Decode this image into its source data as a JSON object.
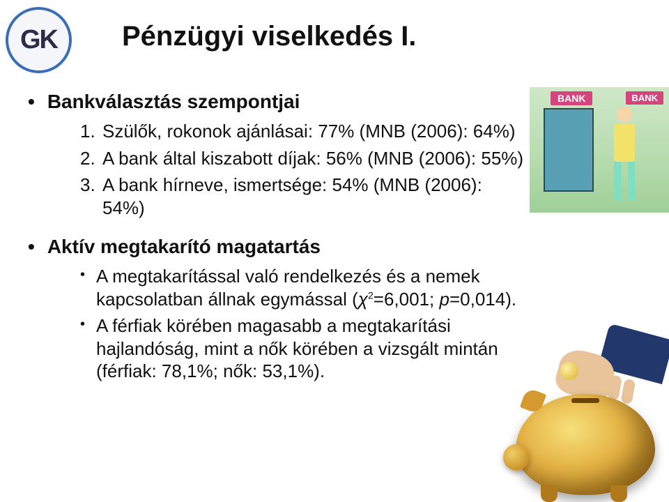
{
  "logo_text": "GK",
  "title": "Pénzügyi viselkedés I.",
  "section1": {
    "heading": "Bankválasztás szempontjai",
    "items": [
      {
        "num": "1.",
        "text": "Szülők, rokonok ajánlásai: 77% (MNB (2006): 64%)"
      },
      {
        "num": "2.",
        "text": "A bank által kiszabott díjak: 56% (MNB (2006): 55%)"
      },
      {
        "num": "3.",
        "text": "A bank hírneve, ismertsége: 54% (MNB (2006): 54%)"
      }
    ]
  },
  "section2": {
    "heading": "Aktív megtakarító magatartás",
    "bullet1_pre": "A megtakarítással való rendelkezés és a nemek kapcsolatban állnak egymással (",
    "chi": "χ",
    "chi_sup": "2",
    "chi_val": "=6,001;   ",
    "p_label": "p",
    "p_val": "=0,014).",
    "bullet2": "A férfiak körében magasabb a megtakarítási hajlandóság, mint a nők körében a vizsgált mintán (férfiak: 78,1%; nők: 53,1%)."
  },
  "bank_label": "BANK",
  "colors": {
    "logo_border": "#3a6fb7",
    "bank_sign": "#d3457c",
    "piggy_gold": "#e6b548",
    "sleeve": "#22376b"
  }
}
